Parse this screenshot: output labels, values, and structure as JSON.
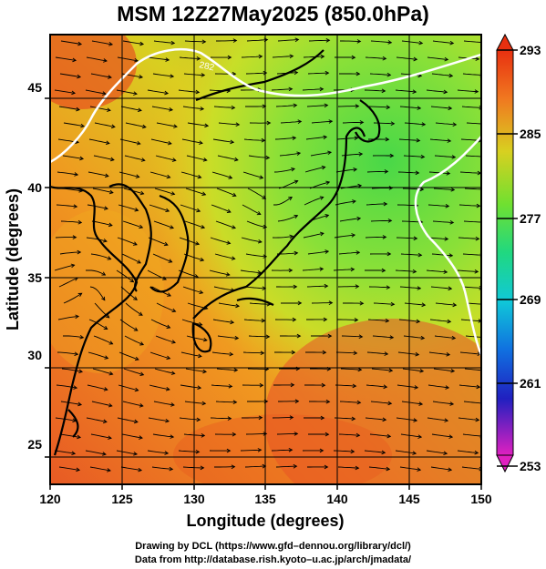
{
  "title": "MSM 12Z27May2025 (850.0hPa)",
  "x_axis": {
    "label": "Longitude (degrees)",
    "ticks": [
      "120",
      "125",
      "130",
      "135",
      "140",
      "145",
      "150"
    ]
  },
  "y_axis": {
    "label": "Latitude  (degrees)",
    "ticks": [
      "25",
      "30",
      "35",
      "40",
      "45"
    ]
  },
  "colorbar": {
    "ticks": [
      "293",
      "285",
      "277",
      "269",
      "261",
      "253"
    ]
  },
  "contour_label": "282",
  "colors": {
    "hot": "#e8502a",
    "warm": "#f08a1e",
    "mid": "#b8e020",
    "cool": "#50d850",
    "contour": "#ffffff"
  },
  "credits": {
    "line1": "Drawing by DCL (https://www.gfd–dennou.org/library/dcl/)",
    "line2": "Data from http://database.rish.kyoto–u.ac.jp/arch/jmadata/"
  }
}
